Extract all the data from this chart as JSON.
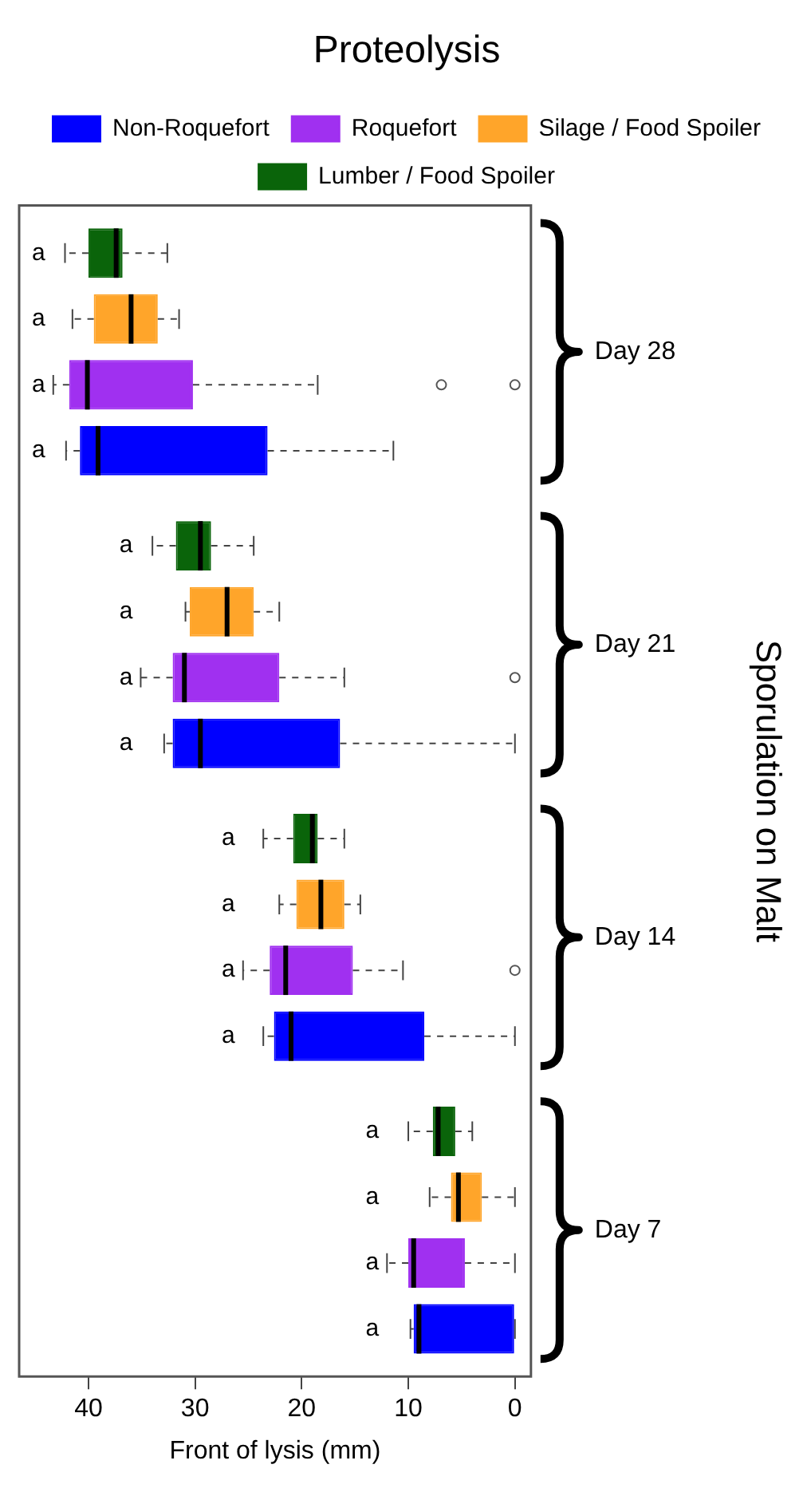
{
  "chart_data": {
    "type": "box",
    "title": "Proteolysis",
    "xlabel": "Front of lysis (mm)",
    "ylabel": "Sporulation on Malt",
    "orientation": "horizontal",
    "categories": [
      "Day 28",
      "Day 21",
      "Day 14",
      "Day 7"
    ],
    "xlim": [
      46.5,
      -1.5
    ],
    "xticks": [
      0,
      10,
      20,
      30,
      40
    ],
    "legend": "top",
    "series": [
      {
        "name": "Non-Roquefort",
        "color": "#0000ff",
        "value_labels": [
          "a",
          "a",
          "a",
          "a"
        ],
        "boxes": [
          {
            "low": 11.4,
            "q1": 23.2,
            "median": 39.1,
            "q3": 40.8,
            "high": 42.1
          },
          {
            "low": 0,
            "q1": 16.4,
            "median": 29.5,
            "q3": 32.1,
            "high": 32.9
          },
          {
            "low": 0,
            "q1": 8.5,
            "median": 21.0,
            "q3": 22.6,
            "high": 23.6
          },
          {
            "low": 0,
            "q1": 0,
            "median": 9.0,
            "q3": 9.5,
            "high": 9.8
          }
        ]
      },
      {
        "name": "Roquefort",
        "color": "#a030f0",
        "value_labels": [
          "a",
          "a",
          "a",
          "a"
        ],
        "boxes": [
          {
            "low": 18.5,
            "q1": 30.2,
            "median": 40.1,
            "q3": 41.8,
            "high": 43.3,
            "outliers": [
              6.9,
              0
            ]
          },
          {
            "low": 16.0,
            "q1": 22.1,
            "median": 31.0,
            "q3": 32.1,
            "high": 35.1,
            "outliers": [
              0
            ]
          },
          {
            "low": 10.5,
            "q1": 15.2,
            "median": 21.5,
            "q3": 23.0,
            "high": 25.5,
            "outliers": [
              0
            ]
          },
          {
            "low": 0,
            "q1": 4.7,
            "median": 9.5,
            "q3": 10.0,
            "high": 12.0
          }
        ]
      },
      {
        "name": "Silage / Food Spoiler",
        "color": "#ffa52a",
        "value_labels": [
          "a",
          "a",
          "a",
          "a"
        ],
        "boxes": [
          {
            "low": 31.5,
            "q1": 33.5,
            "median": 36.0,
            "q3": 39.5,
            "high": 41.5
          },
          {
            "low": 22.1,
            "q1": 24.5,
            "median": 27.0,
            "q3": 30.5,
            "high": 30.9
          },
          {
            "low": 14.5,
            "q1": 16.0,
            "median": 18.2,
            "q3": 20.5,
            "high": 22.1
          },
          {
            "low": 0,
            "q1": 3.1,
            "median": 5.3,
            "q3": 6.0,
            "high": 8.0
          }
        ]
      },
      {
        "name": "Lumber / Food Spoiler",
        "color": "#0a640a",
        "value_labels": [
          "a",
          "a",
          "a",
          "a"
        ],
        "boxes": [
          {
            "low": 32.6,
            "q1": 36.8,
            "median": 37.4,
            "q3": 40.0,
            "high": 42.2
          },
          {
            "low": 24.5,
            "q1": 28.5,
            "median": 29.5,
            "q3": 31.8,
            "high": 34.0
          },
          {
            "low": 16.0,
            "q1": 18.5,
            "median": 19.0,
            "q3": 20.8,
            "high": 23.6
          },
          {
            "low": 4.0,
            "q1": 5.6,
            "median": 7.2,
            "q3": 7.7,
            "high": 10.0
          }
        ]
      }
    ]
  }
}
